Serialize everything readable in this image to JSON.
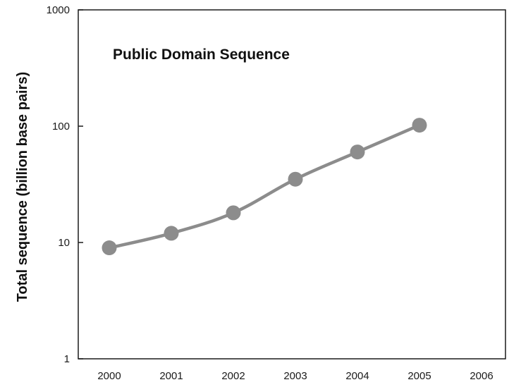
{
  "chart_data": {
    "type": "line",
    "title": "Public Domain Sequence",
    "xlabel": "",
    "ylabel": "Total sequence (billion base pairs)",
    "yscale": "log",
    "ylim": [
      1,
      1000
    ],
    "xlim": [
      2000,
      2006
    ],
    "y_ticks": [
      "1",
      "10",
      "100",
      "1000"
    ],
    "x_ticks": [
      "2000",
      "2001",
      "2002",
      "2003",
      "2004",
      "2005",
      "2006"
    ],
    "grid": false,
    "legend": "none",
    "series": [
      {
        "x": [
          2000,
          2001,
          2002,
          2003,
          2004,
          2005
        ],
        "values": [
          9,
          12,
          18,
          35,
          60,
          102
        ],
        "color": "#8c8c8c"
      }
    ]
  }
}
